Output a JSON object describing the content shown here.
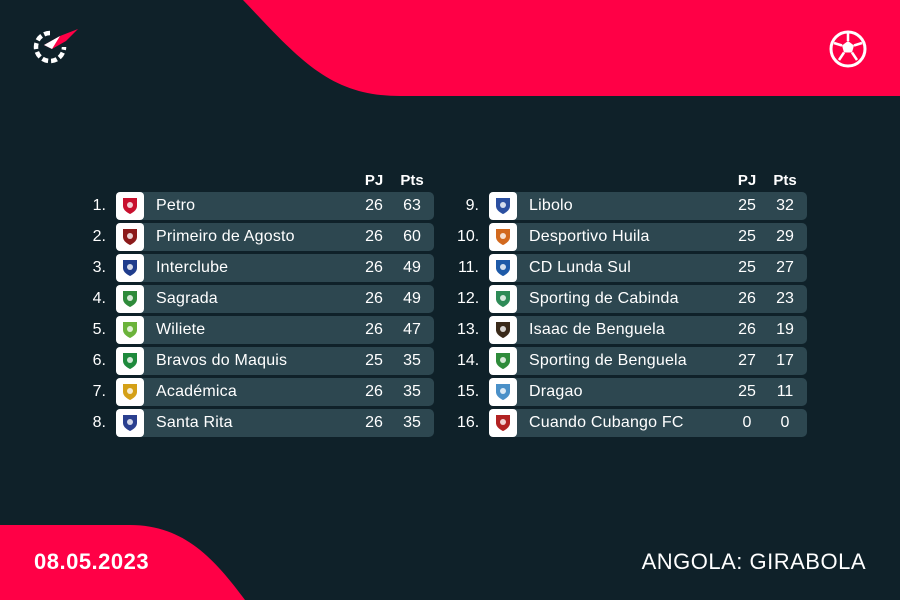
{
  "brand": {
    "accent": "#ff0046",
    "background": "#0f2129",
    "row_bg": "#2d4750",
    "logo_icon": "flashscore-logo-icon",
    "sport_icon": "football-icon"
  },
  "footer": {
    "date": "08.05.2023",
    "league": "ANGOLA: GIRABOLA"
  },
  "columns": {
    "played": "PJ",
    "points": "Pts"
  },
  "standings": [
    {
      "rank": "1.",
      "team": "Petro",
      "pj": "26",
      "pts": "63",
      "crest_color": "#c8102e",
      "crest_icon": "petro-crest-icon"
    },
    {
      "rank": "2.",
      "team": "Primeiro de Agosto",
      "pj": "26",
      "pts": "60",
      "crest_color": "#8b1a1a",
      "crest_icon": "primeiro-de-agosto-crest-icon"
    },
    {
      "rank": "3.",
      "team": "Interclube",
      "pj": "26",
      "pts": "49",
      "crest_color": "#1f3c8c",
      "crest_icon": "interclube-crest-icon"
    },
    {
      "rank": "4.",
      "team": "Sagrada",
      "pj": "26",
      "pts": "49",
      "crest_color": "#2e8b3a",
      "crest_icon": "sagrada-crest-icon"
    },
    {
      "rank": "5.",
      "team": "Wiliete",
      "pj": "26",
      "pts": "47",
      "crest_color": "#6bb33a",
      "crest_icon": "wiliete-crest-icon"
    },
    {
      "rank": "6.",
      "team": "Bravos do Maquis",
      "pj": "25",
      "pts": "35",
      "crest_color": "#1e8a3c",
      "crest_icon": "bravos-do-maquis-crest-icon"
    },
    {
      "rank": "7.",
      "team": "Académica",
      "pj": "26",
      "pts": "35",
      "crest_color": "#d4a017",
      "crest_icon": "academica-crest-icon"
    },
    {
      "rank": "8.",
      "team": "Santa Rita",
      "pj": "26",
      "pts": "35",
      "crest_color": "#2a3f8f",
      "crest_icon": "santa-rita-crest-icon"
    },
    {
      "rank": "9.",
      "team": "Libolo",
      "pj": "25",
      "pts": "32",
      "crest_color": "#2b4fa0",
      "crest_icon": "libolo-crest-icon"
    },
    {
      "rank": "10.",
      "team": "Desportivo Huila",
      "pj": "25",
      "pts": "29",
      "crest_color": "#d2691e",
      "crest_icon": "desportivo-huila-crest-icon"
    },
    {
      "rank": "11.",
      "team": "CD Lunda Sul",
      "pj": "25",
      "pts": "27",
      "crest_color": "#1e5aa8",
      "crest_icon": "cd-lunda-sul-crest-icon"
    },
    {
      "rank": "12.",
      "team": "Sporting de Cabinda",
      "pj": "26",
      "pts": "23",
      "crest_color": "#2e8b57",
      "crest_icon": "sporting-de-cabinda-crest-icon"
    },
    {
      "rank": "13.",
      "team": "Isaac de Benguela",
      "pj": "26",
      "pts": "19",
      "crest_color": "#3a2a1a",
      "crest_icon": "isaac-de-benguela-crest-icon"
    },
    {
      "rank": "14.",
      "team": "Sporting de Benguela",
      "pj": "27",
      "pts": "17",
      "crest_color": "#2e8b3a",
      "crest_icon": "sporting-de-benguela-crest-icon"
    },
    {
      "rank": "15.",
      "team": "Dragao",
      "pj": "25",
      "pts": "11",
      "crest_color": "#4a90c8",
      "crest_icon": "dragao-crest-icon"
    },
    {
      "rank": "16.",
      "team": "Cuando Cubango FC",
      "pj": "0",
      "pts": "0",
      "crest_color": "#b22222",
      "crest_icon": "cuando-cubango-fc-crest-icon"
    }
  ]
}
